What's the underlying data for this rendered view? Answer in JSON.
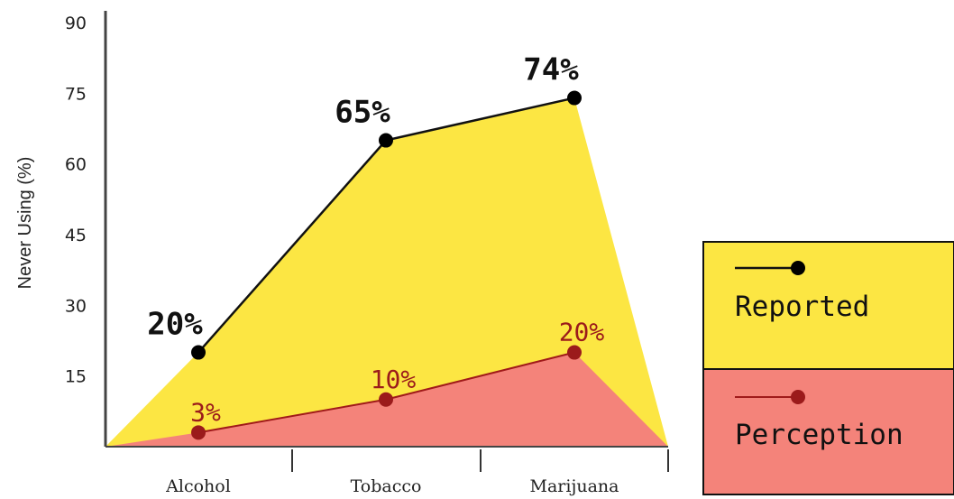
{
  "chart_data": {
    "type": "area",
    "categories": [
      "Alcohol",
      "Tobacco",
      "Marijuana"
    ],
    "ylabel": "Never Using (%)",
    "ylim": [
      0,
      90
    ],
    "yticks": [
      15,
      30,
      45,
      60,
      75,
      90
    ],
    "series": [
      {
        "name": "Reported",
        "values": [
          20,
          65,
          74
        ],
        "labels": [
          "20%",
          "65%",
          "74%"
        ],
        "fill": "#fce643",
        "line": "#111111",
        "marker": "#000000",
        "label_color": "#111111"
      },
      {
        "name": "Perception",
        "values": [
          3,
          10,
          20
        ],
        "labels": [
          "3%",
          "10%",
          "20%"
        ],
        "fill": "#f4837a",
        "line": "#a01a1a",
        "marker": "#9b1b1b",
        "label_color": "#9b1b1b"
      }
    ],
    "legend": {
      "position": "right",
      "entries": [
        "Reported",
        "Perception"
      ]
    },
    "grid": false
  }
}
